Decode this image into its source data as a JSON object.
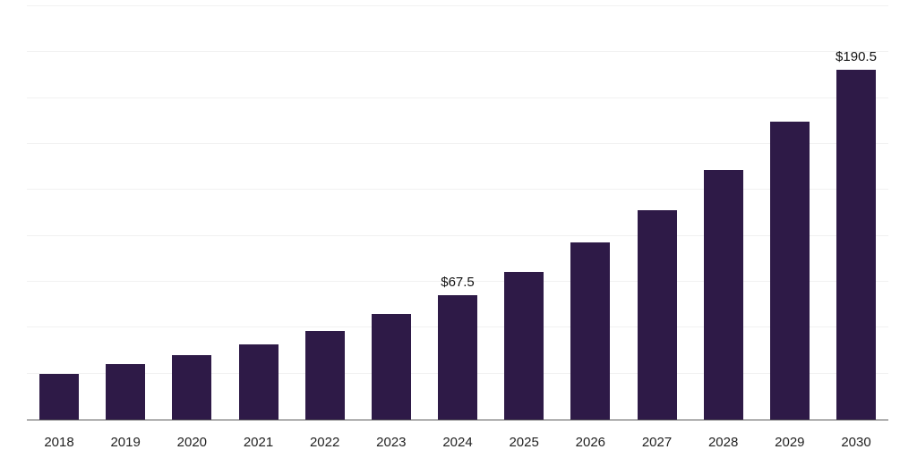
{
  "chart_data": {
    "type": "bar",
    "title": "",
    "xlabel": "",
    "ylabel": "",
    "categories": [
      "2018",
      "2019",
      "2020",
      "2021",
      "2022",
      "2023",
      "2024",
      "2025",
      "2026",
      "2027",
      "2028",
      "2029",
      "2030"
    ],
    "values": [
      25,
      30,
      35,
      41,
      48,
      57.5,
      67.5,
      80.5,
      96.5,
      114,
      136,
      162,
      190.5
    ],
    "value_labels": {
      "2024": "$67.5",
      "2030": "$190.5"
    },
    "ylim": [
      0,
      225
    ],
    "grid_step": 25,
    "grid": true,
    "legend_position": "none",
    "bar_color": "#2E1A47",
    "grid_color": "#F1F1F1",
    "axis_color": "#5A5A5A",
    "tick_label_color": "#222222",
    "value_label_color": "#111111"
  }
}
